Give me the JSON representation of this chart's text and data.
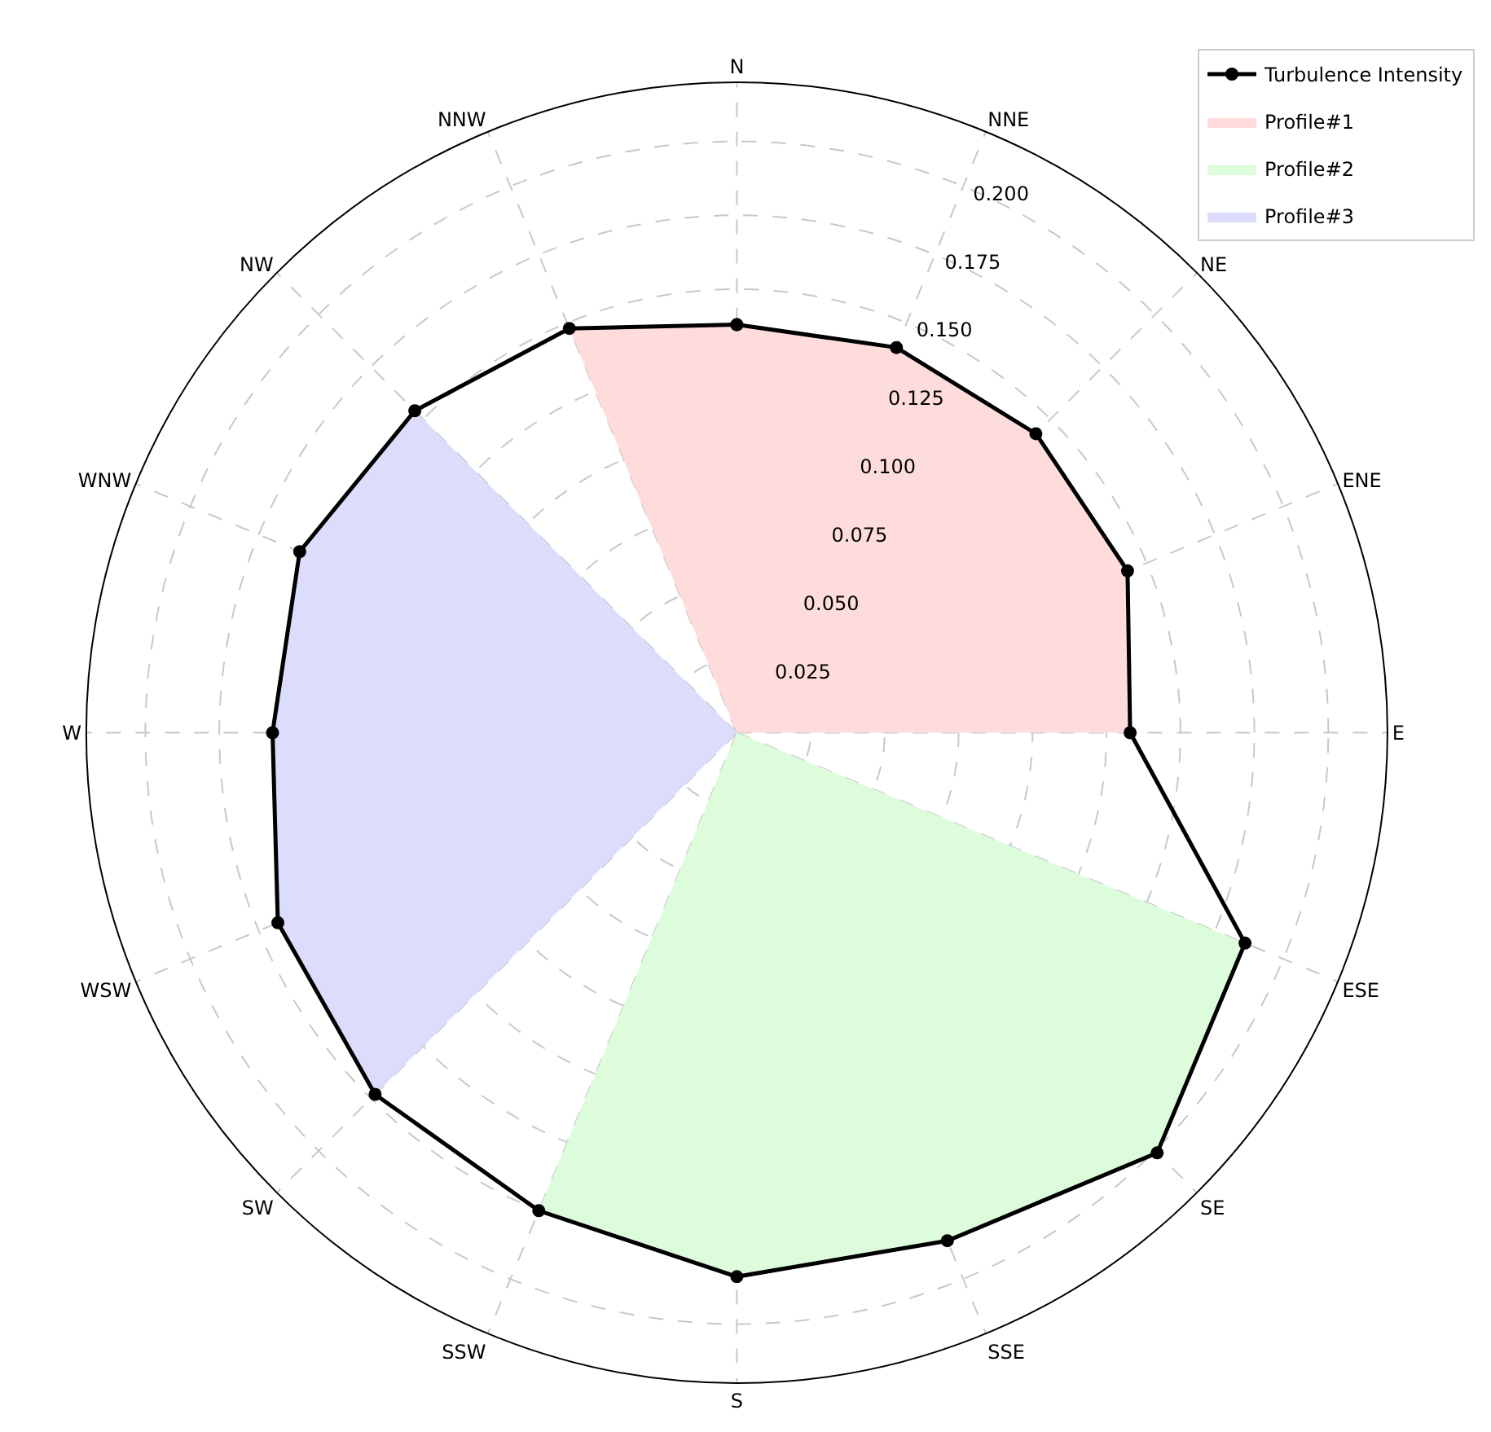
{
  "chart_data": {
    "type": "radar",
    "categories": [
      "N",
      "NNE",
      "NE",
      "ENE",
      "E",
      "ESE",
      "SE",
      "SSE",
      "S",
      "SSW",
      "SW",
      "WSW",
      "W",
      "WNW",
      "NW",
      "NNW"
    ],
    "series": [
      {
        "name": "Turbulence Intensity",
        "color": "#000000",
        "marker": "circle",
        "values": [
          0.138,
          0.141,
          0.143,
          0.143,
          0.133,
          0.186,
          0.201,
          0.186,
          0.184,
          0.175,
          0.173,
          0.168,
          0.157,
          0.16,
          0.154,
          0.148
        ]
      },
      {
        "name": "Profile#1",
        "type": "area",
        "color": "#ffdcdc",
        "values": [
          0.138,
          0.141,
          0.143,
          0.143,
          0.133,
          null,
          null,
          null,
          null,
          null,
          null,
          null,
          null,
          null,
          null,
          0.148
        ]
      },
      {
        "name": "Profile#2",
        "type": "area",
        "color": "#dcfcdc",
        "values": [
          null,
          null,
          null,
          null,
          null,
          0.186,
          0.201,
          0.186,
          0.184,
          0.175,
          null,
          null,
          null,
          null,
          null,
          null
        ]
      },
      {
        "name": "Profile#3",
        "type": "area",
        "color": "#dcdcfc",
        "values": [
          null,
          null,
          null,
          null,
          null,
          null,
          null,
          null,
          null,
          null,
          0.173,
          0.168,
          0.157,
          0.16,
          0.154,
          null
        ]
      }
    ],
    "ylim": [
      0,
      0.22
    ],
    "yticks": [
      {
        "value": 0.025,
        "label": "0.025"
      },
      {
        "value": 0.05,
        "label": "0.050"
      },
      {
        "value": 0.075,
        "label": "0.075"
      },
      {
        "value": 0.1,
        "label": "0.100"
      },
      {
        "value": 0.125,
        "label": "0.125"
      },
      {
        "value": 0.15,
        "label": "0.150"
      },
      {
        "value": 0.175,
        "label": "0.175"
      },
      {
        "value": 0.2,
        "label": "0.200"
      }
    ],
    "grid": true,
    "legend": "top right"
  }
}
